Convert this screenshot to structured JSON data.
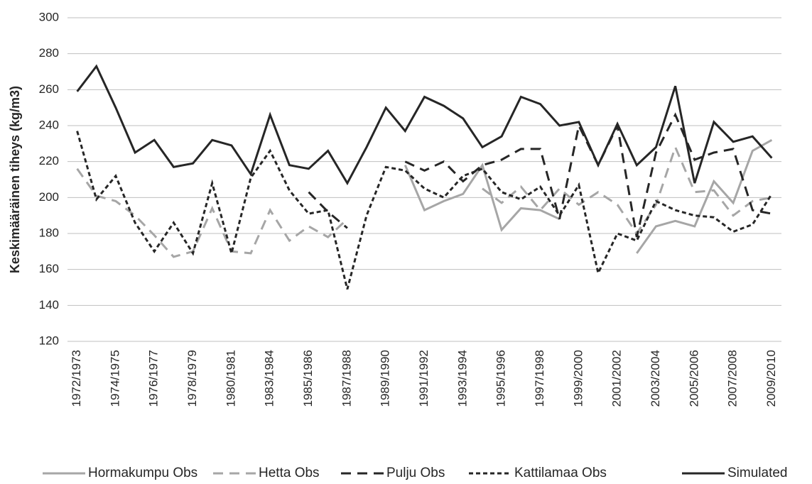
{
  "chart_data": {
    "type": "line",
    "y_label": "Keskimääräinen tiheys (kg/m3)",
    "categories": [
      "1972/1973",
      null,
      "1974/1975",
      null,
      "1976/1977",
      null,
      "1978/1979",
      null,
      "1980/1981",
      null,
      "1983/1984",
      null,
      "1985/1986",
      null,
      "1987/1988",
      null,
      "1989/1990",
      null,
      "1991/1992",
      null,
      "1993/1994",
      null,
      "1995/1996",
      null,
      "1997/1998",
      null,
      "1999/2000",
      null,
      "2001/2002",
      null,
      "2003/2004",
      null,
      "2005/2006",
      null,
      "2007/2008",
      null,
      "2009/2010"
    ],
    "ylim": [
      120,
      300
    ],
    "yticks": [
      120,
      140,
      160,
      180,
      200,
      220,
      240,
      260,
      280,
      300
    ],
    "grid": true,
    "legend": "bottom",
    "series": [
      {
        "name": "Hormakumpu Obs",
        "color": "#a6a6a6",
        "dash": "solid",
        "values": [
          null,
          null,
          null,
          null,
          null,
          null,
          null,
          null,
          null,
          null,
          null,
          null,
          null,
          null,
          null,
          null,
          null,
          218,
          193,
          198,
          202,
          218,
          182,
          194,
          193,
          188,
          null,
          null,
          null,
          169,
          184,
          187,
          184,
          209,
          197,
          226,
          232
        ]
      },
      {
        "name": "Hetta Obs",
        "color": "#a6a6a6",
        "dash": "long",
        "values": [
          216,
          201,
          198,
          190,
          179,
          167,
          170,
          194,
          170,
          169,
          193,
          176,
          184,
          178,
          188,
          null,
          null,
          null,
          null,
          null,
          null,
          205,
          197,
          206,
          193,
          205,
          196,
          203,
          196,
          180,
          196,
          228,
          203,
          204,
          190,
          198,
          200
        ]
      },
      {
        "name": "Pulju Obs",
        "color": "#262626",
        "dash": "long",
        "values": [
          null,
          null,
          null,
          null,
          null,
          null,
          null,
          null,
          null,
          null,
          null,
          null,
          203,
          192,
          183,
          null,
          null,
          220,
          215,
          220,
          209,
          218,
          221,
          227,
          227,
          188,
          240,
          218,
          240,
          178,
          225,
          246,
          221,
          225,
          227,
          193,
          191
        ]
      },
      {
        "name": "Kattilamaa Obs",
        "color": "#262626",
        "dash": "short",
        "values": [
          237,
          199,
          212,
          186,
          170,
          186,
          169,
          208,
          169,
          211,
          226,
          204,
          191,
          193,
          149,
          190,
          217,
          215,
          205,
          200,
          212,
          216,
          203,
          199,
          206,
          190,
          207,
          158,
          180,
          176,
          198,
          193,
          190,
          189,
          181,
          185,
          202
        ]
      },
      {
        "name": "Simulated",
        "color": "#262626",
        "dash": "solid",
        "values": [
          259,
          273,
          250,
          225,
          232,
          217,
          219,
          232,
          229,
          213,
          246,
          218,
          216,
          226,
          208,
          228,
          250,
          237,
          256,
          251,
          244,
          228,
          234,
          256,
          252,
          240,
          242,
          218,
          241,
          218,
          228,
          262,
          208,
          242,
          231,
          234,
          222
        ]
      }
    ]
  }
}
